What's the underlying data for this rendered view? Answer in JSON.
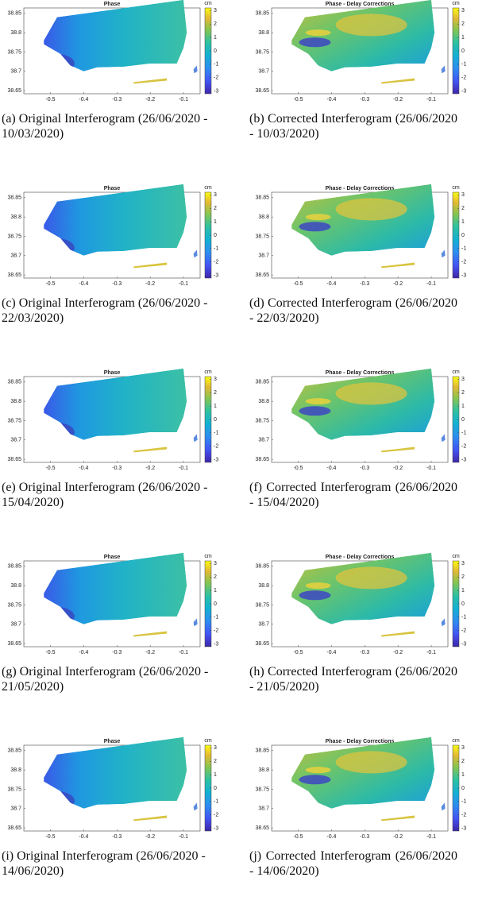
{
  "axes": {
    "xlim": [
      -0.58,
      -0.05
    ],
    "ylim": [
      38.642,
      38.864
    ],
    "xticks": [
      -0.5,
      -0.4,
      -0.3,
      -0.2,
      -0.1
    ],
    "yticks": [
      38.65,
      38.7,
      38.75,
      38.8,
      38.85
    ],
    "clim": [
      -3.2,
      3.2
    ],
    "cticks": [
      3,
      2,
      1,
      0,
      -1,
      -2,
      -3
    ],
    "cunit": "cm"
  },
  "panels": [
    {
      "title": "Phase",
      "caption": "(a) Original Interferogram (26/06/2020 - 10/03/2020)"
    },
    {
      "title": "Phase - Delay Corrections",
      "caption": "(b) Corrected Interferogram (26/06/2020 - 10/03/2020)"
    },
    {
      "title": "Phase",
      "caption": "(c) Original Interferogram (26/06/2020 - 22/03/2020)"
    },
    {
      "title": "Phase - Delay Corrections",
      "caption": "(d) Corrected Interferogram (26/06/2020 - 22/03/2020)"
    },
    {
      "title": "Phase",
      "caption": "(e) Original Interferogram (26/06/2020 - 15/04/2020)"
    },
    {
      "title": "Phase - Delay Corrections",
      "caption": "(f) Corrected Interferogram (26/06/2020 - 15/04/2020)"
    },
    {
      "title": "Phase",
      "caption": "(g) Original Interferogram (26/06/2020 - 21/05/2020)"
    },
    {
      "title": "Phase - Delay Corrections",
      "caption": "(h) Corrected Interferogram (26/06/2020 - 21/05/2020)"
    },
    {
      "title": "Phase",
      "caption": "(i) Original Interferogram (26/06/2020 - 14/06/2020)"
    },
    {
      "title": "Phase - Delay Corrections",
      "caption": "(j) Corrected Interferogram (26/06/2020 - 14/06/2020)"
    }
  ]
}
